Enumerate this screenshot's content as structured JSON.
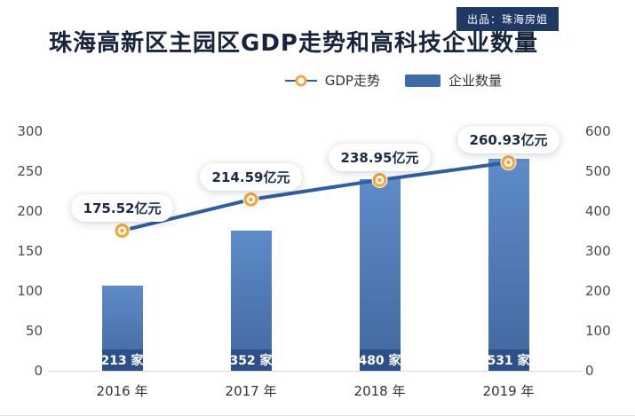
{
  "header": {
    "badge": "出品：珠海房姐",
    "title": "珠海高新区主园区GDP走势和高科技企业数量"
  },
  "legend": {
    "gdp": "GDP走势",
    "bars": "企业数量"
  },
  "colors": {
    "title": "#16243d",
    "badge_bg": "#203864",
    "line": "#2e5fa3",
    "marker": "#f5a83a",
    "bar_top": "#5e8bc9",
    "bar_bottom": "#41689f",
    "bar_band": "#2d5089",
    "swatch": "#3f6aa8",
    "callout_text": "#1b2a4a"
  },
  "chart_data": {
    "type": "combo-line-bar",
    "title": "珠海高新区主园区GDP走势和高科技企业数量",
    "categories": [
      "2016 年",
      "2017 年",
      "2018 年",
      "2019 年"
    ],
    "series": [
      {
        "name": "GDP走势",
        "type": "line",
        "axis": "left",
        "values": [
          175.52,
          214.59,
          238.95,
          260.93
        ],
        "labels": [
          "175.52亿元",
          "214.59亿元",
          "238.95亿元",
          "260.93亿元"
        ]
      },
      {
        "name": "企业数量",
        "type": "bar",
        "axis": "right",
        "values": [
          213,
          352,
          480,
          531
        ],
        "labels": [
          "213 家",
          "352 家",
          "480 家",
          "531 家"
        ]
      }
    ],
    "left_axis": {
      "ticks": [
        0,
        50,
        100,
        150,
        200,
        250,
        300
      ],
      "max": 300
    },
    "right_axis": {
      "ticks": [
        0,
        100,
        200,
        300,
        400,
        500,
        600
      ],
      "max": 600
    },
    "grid": false,
    "legend_position": "top-right"
  }
}
